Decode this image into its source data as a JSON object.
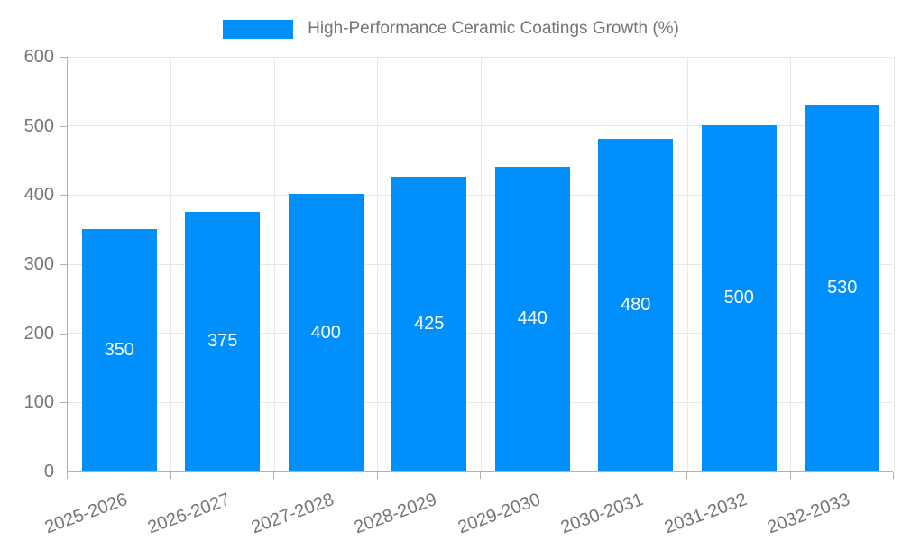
{
  "chart_data": {
    "type": "bar",
    "title": "High-Performance Ceramic Coatings Growth (%)",
    "categories": [
      "2025-2026",
      "2026-2027",
      "2027-2028",
      "2028-2029",
      "2029-2030",
      "2030-2031",
      "2031-2032",
      "2032-2033"
    ],
    "values": [
      350,
      375,
      400,
      425,
      440,
      480,
      500,
      530
    ],
    "value_labels": [
      "350",
      "375",
      "400",
      "425",
      "440",
      "480",
      "500",
      "530"
    ],
    "xlabel": "",
    "ylabel": "",
    "ylim": [
      0,
      600
    ],
    "yticks": [
      0,
      100,
      200,
      300,
      400,
      500,
      600
    ],
    "ytick_labels": [
      "0",
      "100",
      "200",
      "300",
      "400",
      "500",
      "600"
    ],
    "grid": true,
    "legend_position": "top",
    "colors": {
      "bar": "#008FFB",
      "value_label": "#FFFFFF",
      "axis_text": "#757575",
      "legend_text": "#757575",
      "gridline": "#E7E7E7",
      "axis_line": "#B0B0B0",
      "background": "#FFFFFF"
    }
  }
}
